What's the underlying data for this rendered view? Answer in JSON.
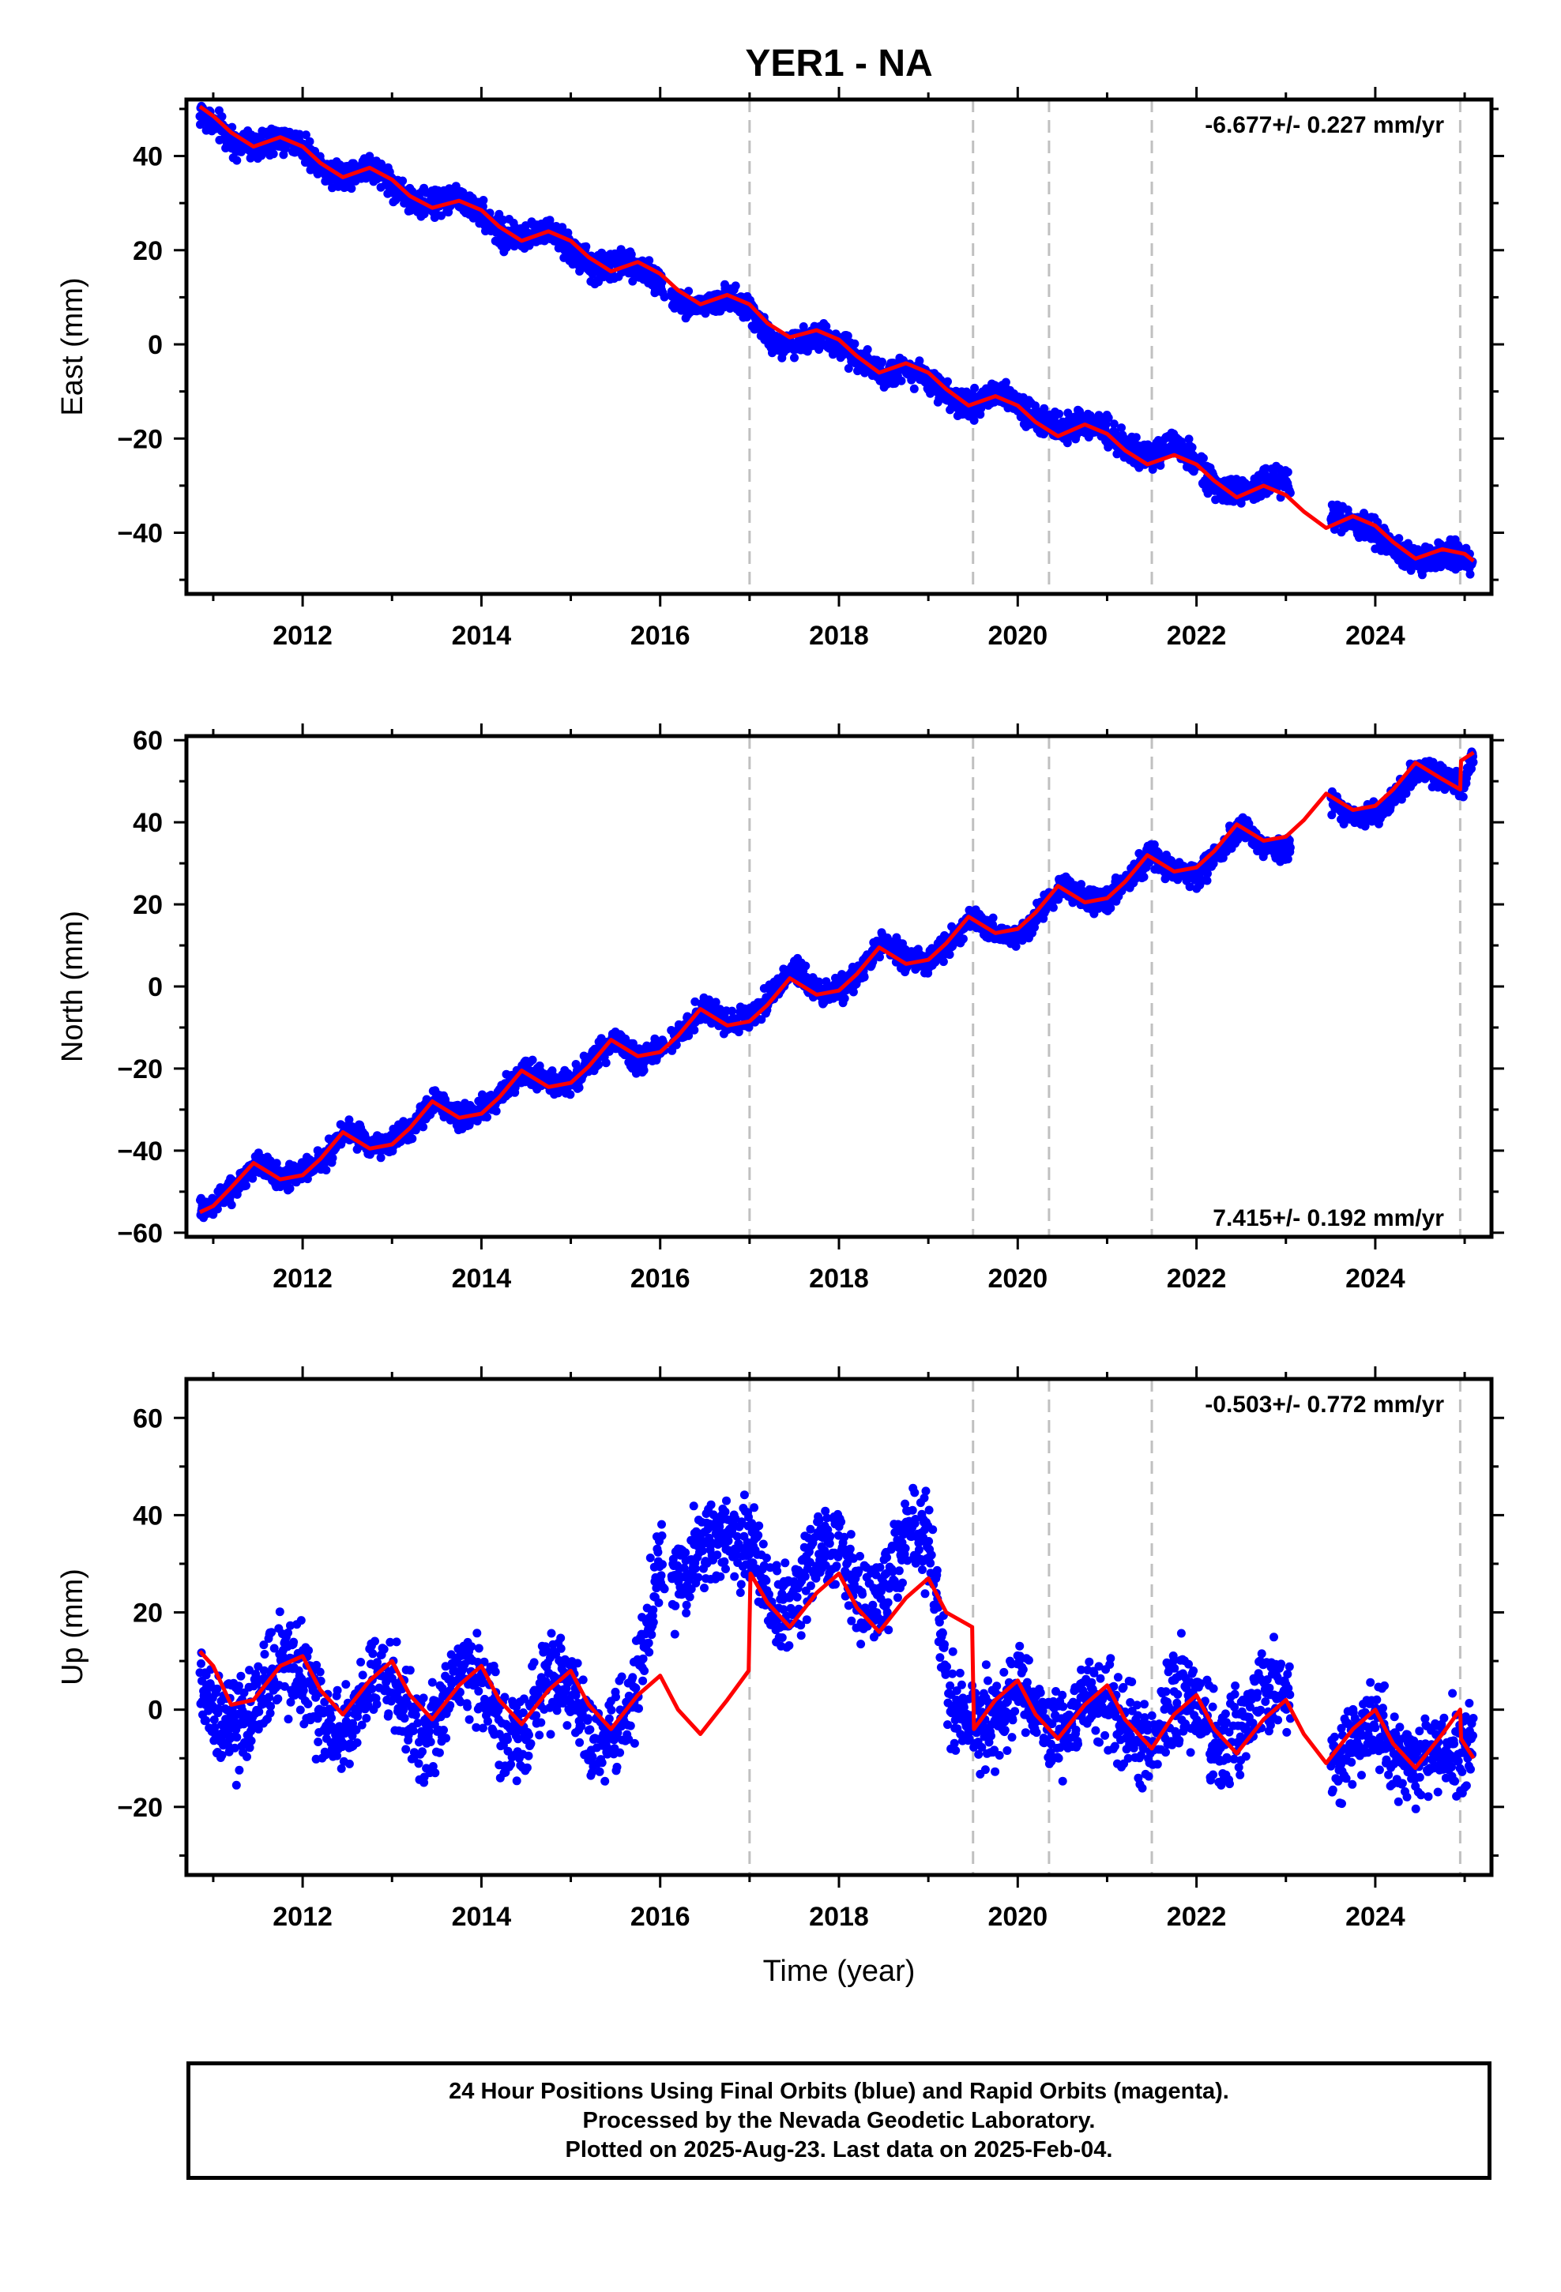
{
  "figure": {
    "title": "YER1 - NA",
    "xlabel": "Time (year)",
    "footer": [
      "24 Hour Positions Using Final Orbits (blue) and Rapid Orbits (magenta).",
      "Processed by the Nevada Geodetic Laboratory.",
      "Plotted on 2025-Aug-23. Last data on 2025-Feb-04."
    ],
    "colors": {
      "data": "#0000ff",
      "model": "#ff0000",
      "event_line": "#c0c0c0",
      "frame": "#000000"
    }
  },
  "chart_data": [
    {
      "type": "scatter",
      "ylabel": "East (mm)",
      "rate": "-6.677+/- 0.227 mm/yr",
      "rate_position": "top-right",
      "xlim": [
        2010.7,
        2025.3
      ],
      "ylim": [
        -53,
        52
      ],
      "xticks": [
        2012,
        2014,
        2016,
        2018,
        2020,
        2022,
        2024
      ],
      "yticks": [
        -40,
        -20,
        0,
        20,
        40
      ],
      "event_lines": [
        2017.0,
        2019.5,
        2020.35,
        2021.5,
        2024.95
      ],
      "series": [
        {
          "role": "observed",
          "x": [
            2010.85,
            2011.0,
            2011.25,
            2011.5,
            2011.75,
            2012.0,
            2012.25,
            2012.5,
            2012.75,
            2013.0,
            2013.25,
            2013.5,
            2013.75,
            2014.0,
            2014.25,
            2014.5,
            2014.75,
            2015.0,
            2015.25,
            2015.5,
            2015.75,
            2016.0,
            2016.25,
            2016.5,
            2016.75,
            2017.0,
            2017.25,
            2017.5,
            2017.75,
            2018.0,
            2018.25,
            2018.5,
            2018.75,
            2019.0,
            2019.25,
            2019.5,
            2019.75,
            2020.0,
            2020.25,
            2020.5,
            2020.75,
            2021.0,
            2021.25,
            2021.5,
            2021.75,
            2022.0,
            2022.25,
            2022.5,
            2022.75,
            2023.0,
            2023.5,
            2023.75,
            2024.0,
            2024.25,
            2024.5,
            2024.75,
            2025.0,
            2025.1
          ],
          "y": [
            49,
            47,
            43,
            42,
            44,
            42,
            37,
            36,
            38,
            34,
            30,
            30,
            31,
            28,
            23,
            23,
            24,
            20,
            16,
            17,
            17,
            13,
            9,
            8,
            10,
            8,
            1,
            0,
            2,
            0,
            -3,
            -6,
            -5,
            -7,
            -12,
            -13,
            -10,
            -12,
            -17,
            -18,
            -16,
            -18,
            -23,
            -24,
            -21,
            -25,
            -31,
            -32,
            -29,
            -29,
            -37,
            -37,
            -40,
            -44,
            -46,
            -45,
            -45,
            -46
          ]
        },
        {
          "role": "model",
          "x": [
            2010.85,
            2011.0,
            2011.2,
            2011.45,
            2011.75,
            2012.0,
            2012.2,
            2012.45,
            2012.75,
            2013.0,
            2013.2,
            2013.45,
            2013.75,
            2014.0,
            2014.2,
            2014.45,
            2014.75,
            2015.0,
            2015.2,
            2015.45,
            2015.75,
            2016.0,
            2016.2,
            2016.45,
            2016.75,
            2017.0,
            2017.2,
            2017.45,
            2017.75,
            2018.0,
            2018.2,
            2018.45,
            2018.75,
            2019.0,
            2019.2,
            2019.45,
            2019.75,
            2020.0,
            2020.2,
            2020.45,
            2020.75,
            2021.0,
            2021.2,
            2021.45,
            2021.75,
            2022.0,
            2022.2,
            2022.45,
            2022.75,
            2023.0,
            2023.2,
            2023.45,
            2023.75,
            2024.0,
            2024.2,
            2024.45,
            2024.75,
            2025.0,
            2025.1
          ],
          "y": [
            50.5,
            48.5,
            45,
            42,
            44,
            42,
            38.5,
            35.5,
            37.5,
            35,
            31.5,
            29,
            30.5,
            28.5,
            25,
            22,
            24,
            22,
            18.5,
            15.5,
            17.5,
            15,
            11.5,
            8.5,
            10.5,
            8.5,
            4.5,
            1.5,
            3,
            1,
            -2.5,
            -6,
            -4,
            -6,
            -9.5,
            -13,
            -11,
            -13,
            -16.5,
            -19.5,
            -17,
            -19,
            -22.5,
            -25.5,
            -23.5,
            -25.5,
            -29,
            -32.5,
            -30,
            -32,
            -35.5,
            -39,
            -36.5,
            -38.5,
            -42,
            -45.5,
            -43.5,
            -44.5,
            -46
          ]
        }
      ]
    },
    {
      "type": "scatter",
      "ylabel": "North (mm)",
      "rate": "7.415+/- 0.192 mm/yr",
      "rate_position": "bottom-right",
      "xlim": [
        2010.7,
        2025.3
      ],
      "ylim": [
        -61,
        61
      ],
      "xticks": [
        2012,
        2014,
        2016,
        2018,
        2020,
        2022,
        2024
      ],
      "yticks": [
        -60,
        -40,
        -20,
        0,
        20,
        40,
        60
      ],
      "event_lines": [
        2017.0,
        2019.5,
        2020.35,
        2021.5,
        2024.95
      ],
      "series": [
        {
          "role": "observed",
          "x": [
            2010.85,
            2011.0,
            2011.25,
            2011.5,
            2011.75,
            2012.0,
            2012.25,
            2012.5,
            2012.75,
            2013.0,
            2013.25,
            2013.5,
            2013.75,
            2014.0,
            2014.25,
            2014.5,
            2014.75,
            2015.0,
            2015.25,
            2015.5,
            2015.75,
            2016.0,
            2016.25,
            2016.5,
            2016.75,
            2017.0,
            2017.25,
            2017.5,
            2017.75,
            2018.0,
            2018.25,
            2018.5,
            2018.75,
            2019.0,
            2019.25,
            2019.5,
            2019.75,
            2020.0,
            2020.25,
            2020.5,
            2020.75,
            2021.0,
            2021.25,
            2021.5,
            2021.75,
            2022.0,
            2022.25,
            2022.5,
            2022.75,
            2023.0,
            2023.5,
            2023.75,
            2024.0,
            2024.25,
            2024.5,
            2024.75,
            2025.0,
            2025.1
          ],
          "y": [
            -54,
            -53,
            -49,
            -43,
            -47,
            -45,
            -42,
            -35,
            -39,
            -38,
            -34,
            -27,
            -32,
            -30,
            -26,
            -20,
            -24,
            -23,
            -18,
            -13,
            -18,
            -16,
            -11,
            -5,
            -9,
            -7,
            -2,
            4,
            -1,
            -1,
            4,
            11,
            7,
            6,
            11,
            17,
            13,
            12,
            18,
            25,
            21,
            21,
            26,
            32,
            28,
            27,
            32,
            39,
            34,
            33,
            45,
            41,
            42,
            47,
            53,
            51,
            49,
            57
          ]
        },
        {
          "role": "model",
          "x": [
            2010.85,
            2011.0,
            2011.2,
            2011.45,
            2011.75,
            2012.0,
            2012.2,
            2012.45,
            2012.75,
            2013.0,
            2013.2,
            2013.45,
            2013.75,
            2014.0,
            2014.2,
            2014.45,
            2014.75,
            2015.0,
            2015.2,
            2015.45,
            2015.75,
            2016.0,
            2016.2,
            2016.45,
            2016.75,
            2017.0,
            2017.2,
            2017.45,
            2017.75,
            2018.0,
            2018.2,
            2018.45,
            2018.75,
            2019.0,
            2019.2,
            2019.45,
            2019.75,
            2020.0,
            2020.2,
            2020.45,
            2020.75,
            2021.0,
            2021.2,
            2021.45,
            2021.75,
            2022.0,
            2022.2,
            2022.45,
            2022.75,
            2023.0,
            2023.2,
            2023.45,
            2023.75,
            2024.0,
            2024.2,
            2024.45,
            2024.75,
            2024.95,
            2024.96,
            2025.1
          ],
          "y": [
            -55,
            -53.5,
            -49,
            -43,
            -47,
            -46,
            -42,
            -35.5,
            -39.5,
            -38.5,
            -34.5,
            -28,
            -32,
            -31,
            -27,
            -20.5,
            -24.5,
            -23.5,
            -19.5,
            -13,
            -17,
            -16,
            -12,
            -5.5,
            -9.5,
            -8.5,
            -4.5,
            2,
            -2,
            -1,
            3,
            9.5,
            5.5,
            6.5,
            10.5,
            17,
            13,
            14,
            18,
            24.5,
            20.5,
            21.5,
            25.5,
            32,
            28,
            29,
            33,
            39.5,
            35.5,
            36.5,
            40.5,
            47,
            43,
            44,
            48,
            54.5,
            50.5,
            48,
            55,
            57
          ]
        }
      ]
    },
    {
      "type": "scatter",
      "ylabel": "Up (mm)",
      "rate": "-0.503+/- 0.772 mm/yr",
      "rate_position": "top-right",
      "xlim": [
        2010.7,
        2025.3
      ],
      "ylim": [
        -34,
        68
      ],
      "xticks": [
        2012,
        2014,
        2016,
        2018,
        2020,
        2022,
        2024
      ],
      "yticks": [
        -20,
        0,
        20,
        40,
        60
      ],
      "event_lines": [
        2017.0,
        2019.5,
        2020.35,
        2021.5,
        2024.95
      ],
      "series": [
        {
          "role": "observed",
          "x": [
            2010.85,
            2011.0,
            2011.25,
            2011.5,
            2011.75,
            2012.0,
            2012.25,
            2012.5,
            2012.75,
            2013.0,
            2013.25,
            2013.5,
            2013.75,
            2014.0,
            2014.25,
            2014.5,
            2014.75,
            2015.0,
            2015.25,
            2015.5,
            2015.75,
            2016.0,
            2016.25,
            2016.5,
            2016.75,
            2017.0,
            2017.25,
            2017.5,
            2017.75,
            2018.0,
            2018.25,
            2018.5,
            2018.75,
            2019.0,
            2019.25,
            2019.5,
            2019.75,
            2020.0,
            2020.25,
            2020.5,
            2020.75,
            2021.0,
            2021.25,
            2021.5,
            2021.75,
            2022.0,
            2022.25,
            2022.5,
            2022.75,
            2023.0,
            2023.5,
            2023.75,
            2024.0,
            2024.25,
            2024.5,
            2024.75,
            2025.0,
            2025.1
          ],
          "y": [
            5,
            0,
            -5,
            2,
            10,
            8,
            -3,
            -4,
            8,
            6,
            -6,
            -5,
            9,
            6,
            -6,
            -4,
            8,
            4,
            -8,
            -6,
            6,
            30,
            27,
            35,
            36,
            34,
            20,
            23,
            33,
            33,
            22,
            25,
            35,
            35,
            2,
            -2,
            -3,
            5,
            -2,
            -6,
            3,
            2,
            -5,
            -8,
            4,
            2,
            -8,
            -5,
            5,
            3,
            -10,
            -8,
            -2,
            -10,
            -12,
            -8,
            -9,
            -6
          ]
        },
        {
          "role": "model",
          "x": [
            2010.85,
            2011.0,
            2011.2,
            2011.45,
            2011.75,
            2012.0,
            2012.2,
            2012.45,
            2012.75,
            2013.0,
            2013.2,
            2013.45,
            2013.75,
            2014.0,
            2014.2,
            2014.45,
            2014.75,
            2015.0,
            2015.2,
            2015.45,
            2015.75,
            2016.0,
            2016.2,
            2016.45,
            2016.75,
            2016.99,
            2017.01,
            2017.2,
            2017.45,
            2017.75,
            2018.0,
            2018.2,
            2018.45,
            2018.75,
            2019.0,
            2019.2,
            2019.49,
            2019.51,
            2019.75,
            2020.0,
            2020.2,
            2020.45,
            2020.75,
            2021.0,
            2021.2,
            2021.45,
            2021.5,
            2021.75,
            2022.0,
            2022.2,
            2022.45,
            2022.75,
            2023.0,
            2023.2,
            2023.45,
            2023.75,
            2024.0,
            2024.2,
            2024.45,
            2024.75,
            2024.95,
            2024.96,
            2025.1
          ],
          "y": [
            12,
            9,
            1,
            2,
            9,
            11,
            4,
            -1,
            6,
            10,
            3,
            -2,
            5,
            9,
            2,
            -3,
            4,
            8,
            1,
            -4,
            3,
            7,
            0,
            -5,
            2,
            8,
            28,
            22,
            17,
            24,
            28,
            21,
            16,
            23,
            27,
            20,
            17,
            -4,
            2,
            6,
            -1,
            -6,
            1,
            5,
            -2,
            -7,
            -8,
            -1,
            3,
            -4,
            -9,
            -2,
            2,
            -5,
            -11,
            -4,
            0,
            -7,
            -12,
            -5,
            0,
            -6,
            -10
          ]
        }
      ]
    }
  ]
}
